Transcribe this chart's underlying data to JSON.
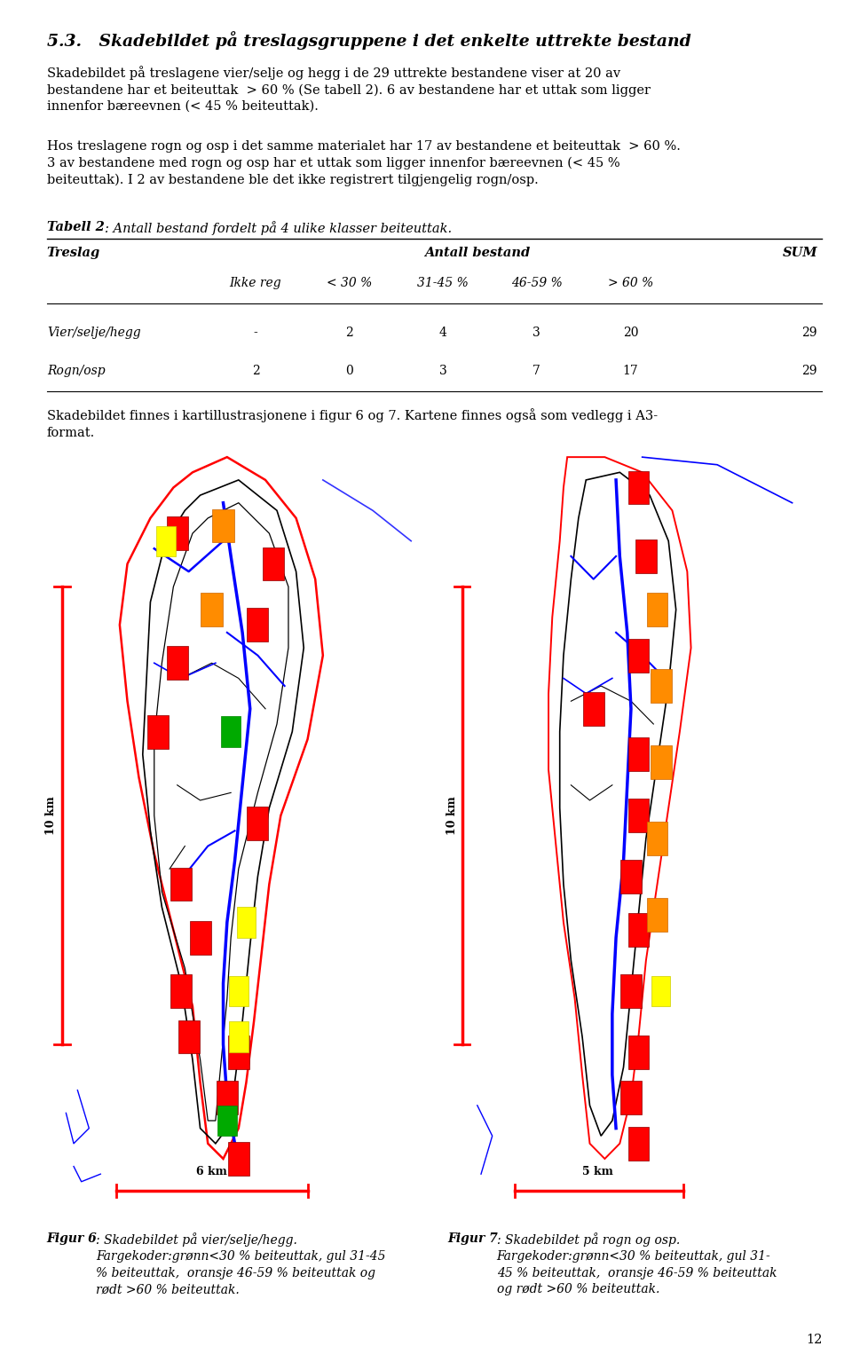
{
  "title": "5.3.   Skadebildet på treslagsgruppene i det enkelte uttrekte bestand",
  "para1": "Skadebildet på treslagene vier/selje og hegg i de 29 uttrekte bestandene viser at 20 av\nbestandene har et beiteuttak  > 60 % (Se tabell 2). 6 av bestandene har et uttak som ligger\ninnenfor bæreevnen (< 45 % beiteuttak).",
  "para2": "Hos treslagene rogn og osp i det samme materialet har 17 av bestandene et beiteuttak  > 60 %.\n3 av bestandene med rogn og osp har et uttak som ligger innenfor bæreevnen (< 45 %\nbeiteuttak). I 2 av bestandene ble det ikke registrert tilgjengelig rogn/osp.",
  "table_caption_bold": "Tabell 2",
  "table_caption_rest": ": Antall bestand fordelt på 4 ulike klasser beiteuttak.",
  "table_rows": [
    [
      "Vier/selje/hegg",
      "-",
      "2",
      "4",
      "3",
      "20",
      "29"
    ],
    [
      "Rogn/osp",
      "2",
      "0",
      "3",
      "7",
      "17",
      "29"
    ]
  ],
  "para3": "Skadebildet finnes i kartillustrasjonene i figur 6 og 7. Kartene finnes også som vedlegg i A3-\nformat.",
  "fig6_caption_bold": "Figur 6",
  "fig6_caption": ": Skadebildet på vier/selje/hegg.\nFargekoder:grønn<30 % beiteuttak, gul 31-45\n% beiteuttak,  oransje 46-59 % beiteuttak og\nrødt >60 % beiteuttak.",
  "fig7_caption_bold": "Figur 7",
  "fig7_caption": ": Skadebildet på rogn og osp.\nFargekoder:grønn<30 % beiteuttak, gul 31-\n45 % beiteuttak,  oransje 46-59 % beiteuttak\nog rødt >60 % beiteuttak.",
  "page_number": "12",
  "bg_color": "#ffffff",
  "text_color": "#000000",
  "ml": 0.055,
  "mr": 0.965,
  "title_fontsize": 13.5,
  "body_fontsize": 10.5,
  "caption_fontsize": 10.0
}
